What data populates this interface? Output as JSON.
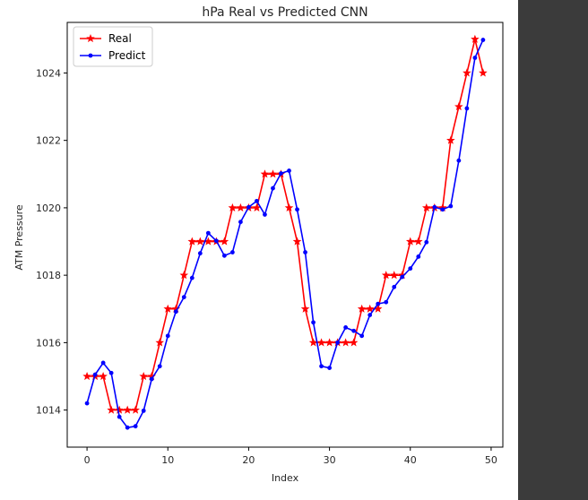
{
  "chart_data": {
    "type": "line",
    "title": "hPa Real vs Predicted CNN",
    "xlabel": "Index",
    "ylabel": "ATM Pressure",
    "xlim": [
      -2.45,
      51.45
    ],
    "ylim": [
      1012.9,
      1025.5
    ],
    "xticks": [
      0,
      10,
      20,
      30,
      40,
      50
    ],
    "yticks": [
      1014,
      1016,
      1018,
      1020,
      1022,
      1024
    ],
    "grid": false,
    "legend_position": "top-left",
    "x": [
      0,
      1,
      2,
      3,
      4,
      5,
      6,
      7,
      8,
      9,
      10,
      11,
      12,
      13,
      14,
      15,
      16,
      17,
      18,
      19,
      20,
      21,
      22,
      23,
      24,
      25,
      26,
      27,
      28,
      29,
      30,
      31,
      32,
      33,
      34,
      35,
      36,
      37,
      38,
      39,
      40,
      41,
      42,
      43,
      44,
      45,
      46,
      47,
      48,
      49
    ],
    "series": [
      {
        "name": "Real",
        "color": "#ff0000",
        "marker": "star",
        "values": [
          1015,
          1015,
          1015,
          1014,
          1014,
          1014,
          1014,
          1015,
          1015,
          1016,
          1017,
          1017,
          1018,
          1019,
          1019,
          1019,
          1019,
          1019,
          1020,
          1020,
          1020,
          1020,
          1021,
          1021,
          1021,
          1020,
          1019,
          1017,
          1016,
          1016,
          1016,
          1016,
          1016,
          1016,
          1017,
          1017,
          1017,
          1018,
          1018,
          1018,
          1019,
          1019,
          1020,
          1020,
          1020,
          1022,
          1023,
          1024,
          1025,
          1024
        ]
      },
      {
        "name": "Predict",
        "color": "#0000ff",
        "marker": "dot",
        "values": [
          1014.2,
          1015.05,
          1015.4,
          1015.1,
          1013.8,
          1013.48,
          1013.52,
          1013.98,
          1014.92,
          1015.3,
          1016.2,
          1016.92,
          1017.35,
          1017.92,
          1018.65,
          1019.25,
          1019.02,
          1018.58,
          1018.68,
          1019.58,
          1020.02,
          1020.2,
          1019.8,
          1020.58,
          1021.02,
          1021.1,
          1019.95,
          1018.68,
          1016.6,
          1015.3,
          1015.25,
          1016.0,
          1016.45,
          1016.35,
          1016.2,
          1016.82,
          1017.15,
          1017.2,
          1017.65,
          1017.95,
          1018.2,
          1018.55,
          1018.98,
          1020.02,
          1019.95,
          1020.05,
          1021.4,
          1022.95,
          1024.45,
          1024.98
        ]
      }
    ]
  }
}
